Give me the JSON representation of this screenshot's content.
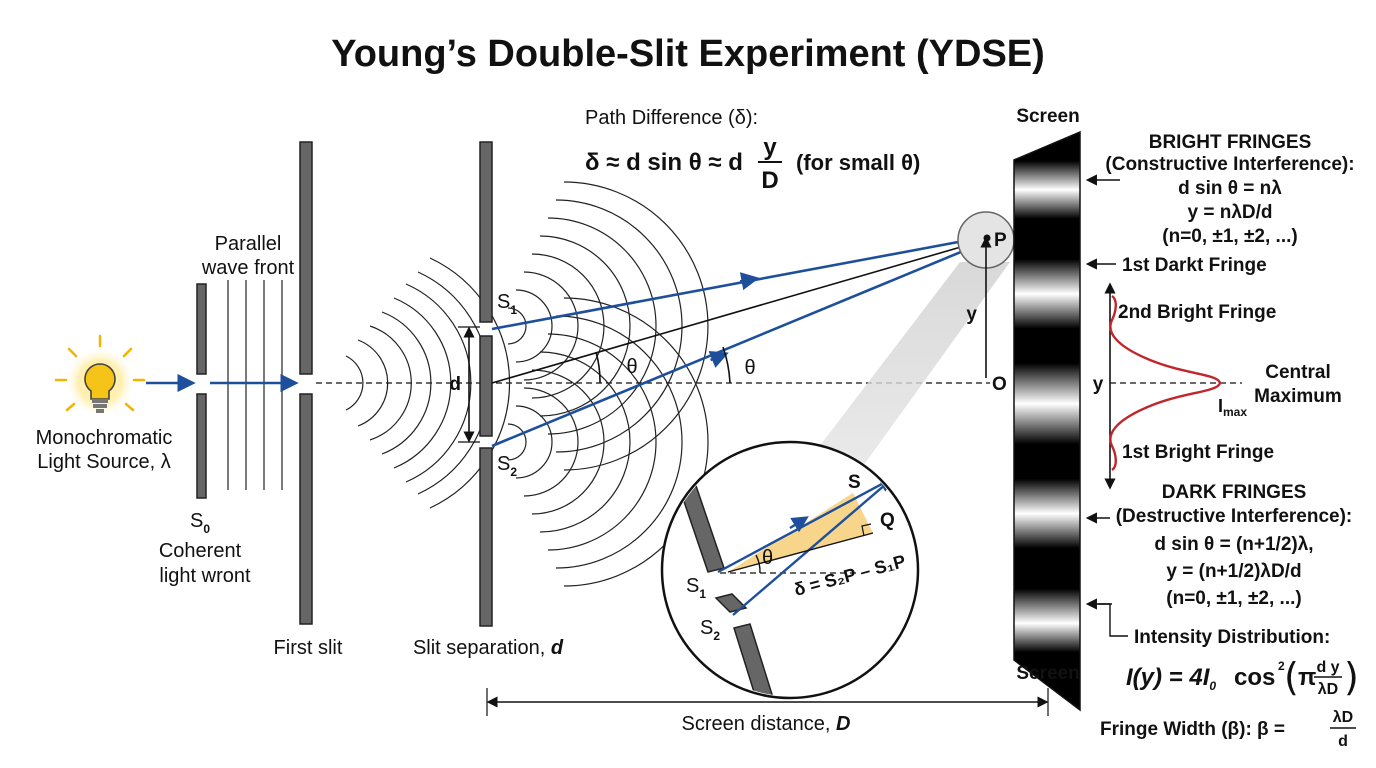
{
  "title": "Young’s Double-Slit Experiment (YDSE)",
  "source": {
    "line1": "Monochromatic",
    "line2": "Light Source, λ"
  },
  "s0_label": "S",
  "s0_sub": "0",
  "coherent": {
    "line1": "Coherent",
    "line2": "light wront"
  },
  "parallel": {
    "line1": "Parallel",
    "line2": "wave front"
  },
  "first_slit": "First slit",
  "slit_sep": "Slit separation, d",
  "d_label": "d",
  "s1": {
    "main": "S",
    "sub": "1"
  },
  "s2": {
    "main": "S",
    "sub": "2"
  },
  "theta": "θ",
  "path_diff": {
    "heading": "Path Difference (δ):",
    "eq_left": "δ ≈ d sin θ ≈ d",
    "frac_num": "y",
    "frac_den": "D",
    "eq_right": "(for small θ)"
  },
  "point_p": "P",
  "y_label": "y",
  "o_label": "O",
  "screen_top": "Screen",
  "screen_bottom": "Screen",
  "screen_distance": "Screen distance, D",
  "inset": {
    "s": "S",
    "q": "Q",
    "s1": "S",
    "s1_sub": "1",
    "s2": "S",
    "s2_sub": "2",
    "theta": "θ",
    "delta_eq": "δ = S₂P – S₁P"
  },
  "bright": {
    "line1": "BRIGHT FRINGES",
    "line2": "(Constructive Interference):",
    "line3": "d sin θ = nλ",
    "line4": "y = nλD/d",
    "line5": "(n=0, ±1, ±2, ...)"
  },
  "first_dark": "1st Darkt Fringe",
  "second_bright": "2nd Bright Fringe",
  "central": {
    "line1": "Central",
    "line2": "Maximum"
  },
  "imax": "I",
  "imax_sub": "max",
  "y_axis": "y",
  "first_bright": "1st Bright Fringe",
  "dark": {
    "line1": "DARK FRINGES",
    "line2": "(Destructive Interference):",
    "line3": "d sin θ = (n+1/2)λ,",
    "line4": "y = (n+1/2)λD/d",
    "line5": "(n=0, ±1, ±2, ...)"
  },
  "intensity": {
    "heading": "Intensity Distribution:",
    "eq_left": "I(y) = 4I",
    "eq_sub": "0",
    "eq_cos": "cos",
    "eq_sup": "2",
    "eq_pi": "π",
    "eq_num": "d y",
    "eq_den": "λD"
  },
  "fringe_width": {
    "label": "Fringe Width (β): β =",
    "num": "λD",
    "den": "d"
  },
  "colors": {
    "ray": "#1d4f9c",
    "intensity_curve": "#c0272d",
    "bulb": "#f6c419",
    "wedge": "#f7d68c"
  }
}
